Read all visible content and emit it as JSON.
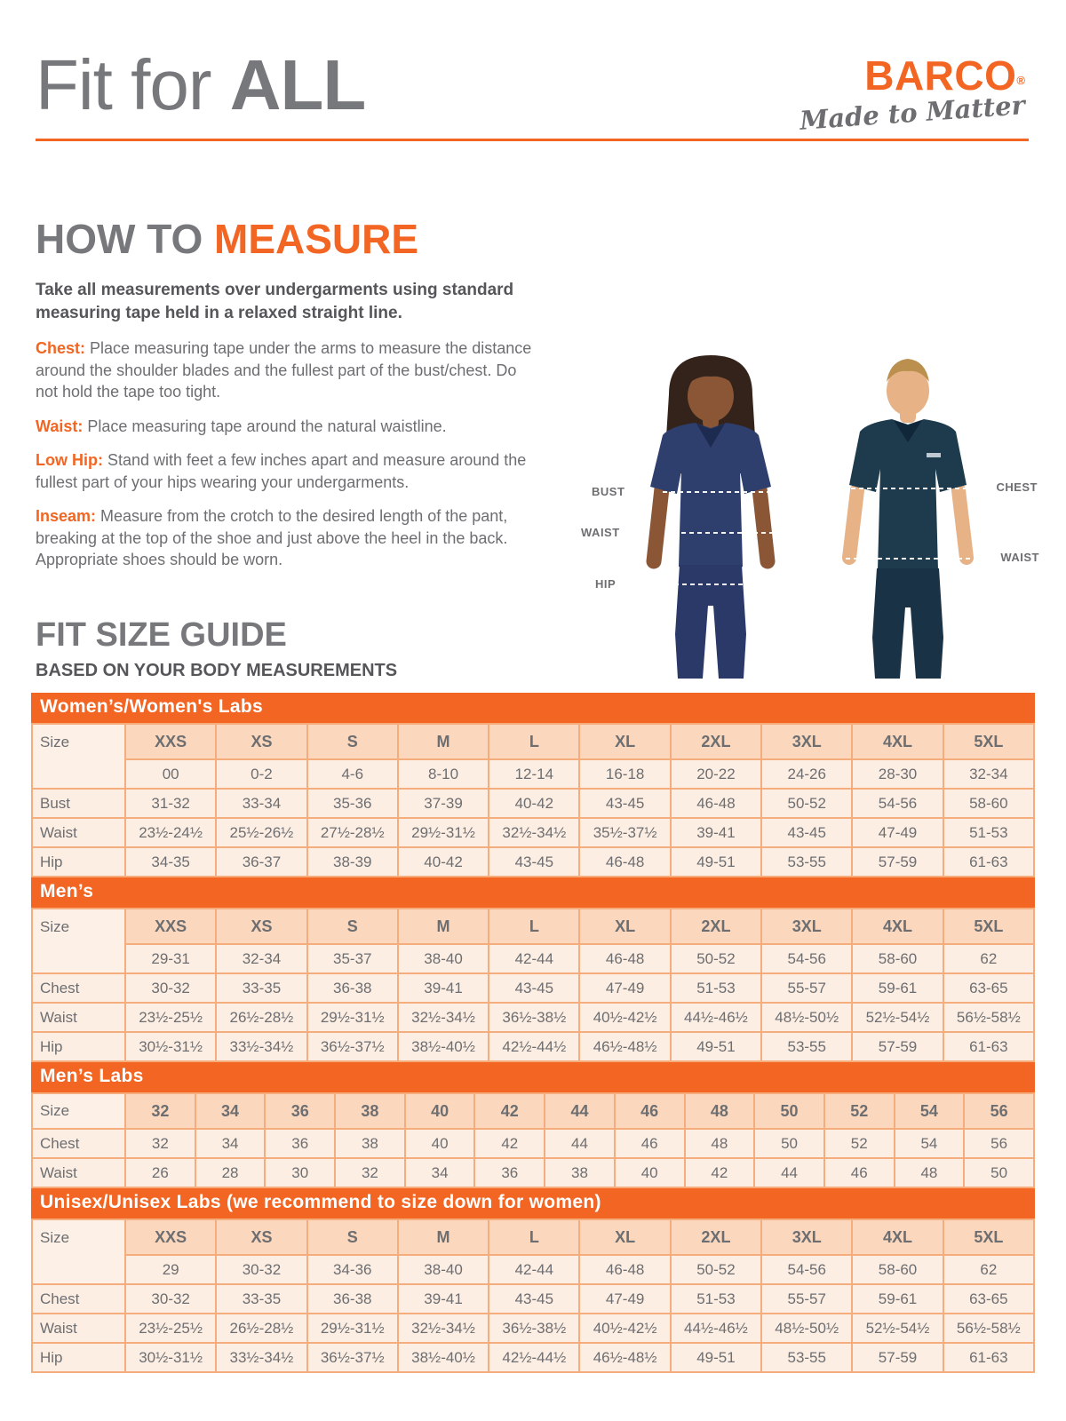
{
  "colors": {
    "accent_orange": "#F26522",
    "heading_gray": "#77787B",
    "body_gray": "#6D6E71",
    "dark_text": "#58595B",
    "table_band": "#F26522",
    "table_header_cell": "#FBD8BD",
    "table_cell": "#FDEEE3",
    "table_border": "#F5AD7E"
  },
  "header": {
    "title_light": "Fit for ",
    "title_bold": "ALL"
  },
  "brand": {
    "name": "BARCO",
    "registered": "®",
    "tagline": "Made to Matter"
  },
  "how_to_measure": {
    "heading_prefix": "HOW TO ",
    "heading_accent": "MEASURE",
    "intro": "Take all measurements over undergarments using standard measuring tape held in a relaxed straight line.",
    "items": [
      {
        "label": "Chest:",
        "text": " Place measuring tape under the arms to measure the distance around the shoulder blades and the fullest part of the bust/chest. Do not hold the tape too tight."
      },
      {
        "label": "Waist:",
        "text": " Place measuring tape around the natural waistline."
      },
      {
        "label": "Low Hip:",
        "text": " Stand with feet a few inches apart and measure around the fullest part of your hips wearing your undergarments."
      },
      {
        "label": "Inseam:",
        "text": " Measure from the crotch to the desired length of the pant, breaking at the top of the shoe and just above the heel in the back. Appropriate shoes should be worn."
      }
    ]
  },
  "figure": {
    "labels": {
      "bust": "BUST",
      "waist_left": "WAIST",
      "hip": "HIP",
      "chest": "CHEST",
      "waist_right": "WAIST"
    }
  },
  "size_guide": {
    "heading": "FIT SIZE GUIDE",
    "subheading": "BASED ON YOUR BODY MEASUREMENTS",
    "tables": [
      {
        "title": "Women’s/Women's Labs",
        "label_col": "Size",
        "columns": [
          "XXS",
          "XS",
          "S",
          "M",
          "L",
          "XL",
          "2XL",
          "3XL",
          "4XL",
          "5XL"
        ],
        "numeric_row": [
          "00",
          "0-2",
          "4-6",
          "8-10",
          "12-14",
          "16-18",
          "20-22",
          "24-26",
          "28-30",
          "32-34"
        ],
        "rows": [
          {
            "label": "Bust",
            "values": [
              "31-32",
              "33-34",
              "35-36",
              "37-39",
              "40-42",
              "43-45",
              "46-48",
              "50-52",
              "54-56",
              "58-60"
            ]
          },
          {
            "label": "Waist",
            "values": [
              "23½-24½",
              "25½-26½",
              "27½-28½",
              "29½-31½",
              "32½-34½",
              "35½-37½",
              "39-41",
              "43-45",
              "47-49",
              "51-53"
            ]
          },
          {
            "label": "Hip",
            "values": [
              "34-35",
              "36-37",
              "38-39",
              "40-42",
              "43-45",
              "46-48",
              "49-51",
              "53-55",
              "57-59",
              "61-63"
            ]
          }
        ]
      },
      {
        "title": "Men’s",
        "label_col": "Size",
        "columns": [
          "XXS",
          "XS",
          "S",
          "M",
          "L",
          "XL",
          "2XL",
          "3XL",
          "4XL",
          "5XL"
        ],
        "numeric_row": [
          "29-31",
          "32-34",
          "35-37",
          "38-40",
          "42-44",
          "46-48",
          "50-52",
          "54-56",
          "58-60",
          "62"
        ],
        "rows": [
          {
            "label": "Chest",
            "values": [
              "30-32",
              "33-35",
              "36-38",
              "39-41",
              "43-45",
              "47-49",
              "51-53",
              "55-57",
              "59-61",
              "63-65"
            ]
          },
          {
            "label": "Waist",
            "values": [
              "23½-25½",
              "26½-28½",
              "29½-31½",
              "32½-34½",
              "36½-38½",
              "40½-42½",
              "44½-46½",
              "48½-50½",
              "52½-54½",
              "56½-58½"
            ]
          },
          {
            "label": "Hip",
            "values": [
              "30½-31½",
              "33½-34½",
              "36½-37½",
              "38½-40½",
              "42½-44½",
              "46½-48½",
              "49-51",
              "53-55",
              "57-59",
              "61-63"
            ]
          }
        ]
      },
      {
        "title": "Men’s Labs",
        "label_col": "Size",
        "columns": [
          "32",
          "34",
          "36",
          "38",
          "40",
          "42",
          "44",
          "46",
          "48",
          "50",
          "52",
          "54",
          "56"
        ],
        "numeric_row": null,
        "rows": [
          {
            "label": "Chest",
            "values": [
              "32",
              "34",
              "36",
              "38",
              "40",
              "42",
              "44",
              "46",
              "48",
              "50",
              "52",
              "54",
              "56"
            ]
          },
          {
            "label": "Waist",
            "values": [
              "26",
              "28",
              "30",
              "32",
              "34",
              "36",
              "38",
              "40",
              "42",
              "44",
              "46",
              "48",
              "50"
            ]
          }
        ]
      },
      {
        "title": "Unisex/Unisex Labs (we recommend to size down for women)",
        "label_col": "Size",
        "columns": [
          "XXS",
          "XS",
          "S",
          "M",
          "L",
          "XL",
          "2XL",
          "3XL",
          "4XL",
          "5XL"
        ],
        "numeric_row": [
          "29",
          "30-32",
          "34-36",
          "38-40",
          "42-44",
          "46-48",
          "50-52",
          "54-56",
          "58-60",
          "62"
        ],
        "rows": [
          {
            "label": "Chest",
            "values": [
              "30-32",
              "33-35",
              "36-38",
              "39-41",
              "43-45",
              "47-49",
              "51-53",
              "55-57",
              "59-61",
              "63-65"
            ]
          },
          {
            "label": "Waist",
            "values": [
              "23½-25½",
              "26½-28½",
              "29½-31½",
              "32½-34½",
              "36½-38½",
              "40½-42½",
              "44½-46½",
              "48½-50½",
              "52½-54½",
              "56½-58½"
            ]
          },
          {
            "label": "Hip",
            "values": [
              "30½-31½",
              "33½-34½",
              "36½-37½",
              "38½-40½",
              "42½-44½",
              "46½-48½",
              "49-51",
              "53-55",
              "57-59",
              "61-63"
            ]
          }
        ]
      }
    ]
  }
}
